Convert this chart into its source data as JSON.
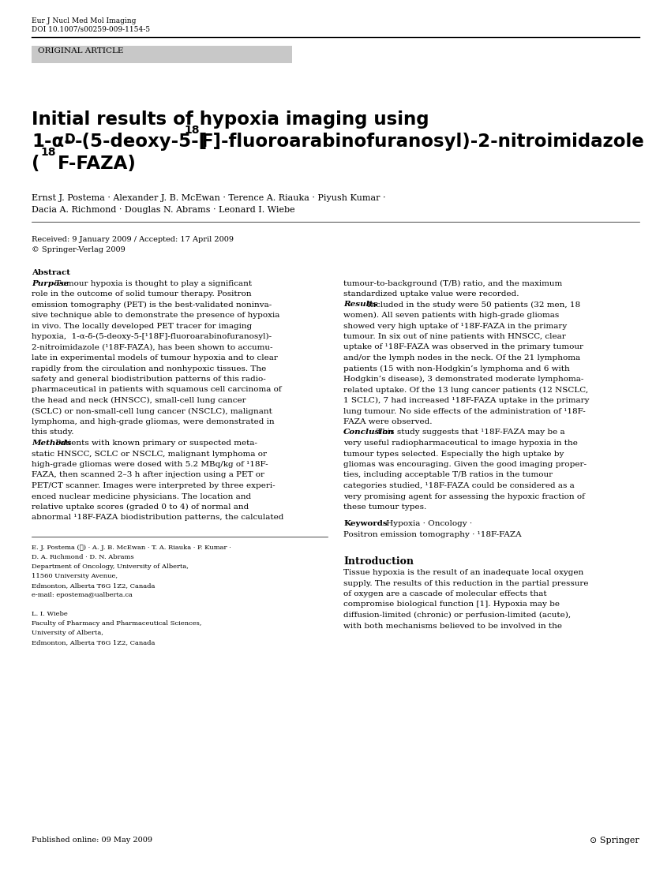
{
  "journal_name": "Eur J Nucl Med Mol Imaging",
  "doi": "DOI 10.1007/s00259-009-1154-5",
  "article_type": "ORIGINAL ARTICLE",
  "authors_line1": "Ernst J. Postema · Alexander J. B. McEwan · Terence A. Riauka · Piyush Kumar ·",
  "authors_line2": "Dacia A. Richmond · Douglas N. Abrams · Leonard I. Wiebe",
  "received": "Received: 9 January 2009 / Accepted: 17 April 2009",
  "copyright": "© Springer-Verlag 2009",
  "abstract_left_lines": [
    [
      "bold_italic",
      "Abstract"
    ],
    [
      "bold_italic_inline",
      "Purpose",
      " Tumour hypoxia is thought to play a significant"
    ],
    [
      "normal",
      "role in the outcome of solid tumour therapy. Positron"
    ],
    [
      "normal",
      "emission tomography (PET) is the best-validated noninva-"
    ],
    [
      "normal",
      "sive technique able to demonstrate the presence of hypoxia"
    ],
    [
      "normal",
      "in vivo. The locally developed PET tracer for imaging"
    ],
    [
      "normal",
      "hypoxia,  1-α-δ-(5-deoxy-5-[¹18F]-fluoroarabinofuranosyl)-"
    ],
    [
      "normal",
      "2-nitroimidazole (¹18F-FAZA), has been shown to accumu-"
    ],
    [
      "normal",
      "late in experimental models of tumour hypoxia and to clear"
    ],
    [
      "normal",
      "rapidly from the circulation and nonhypoxic tissues. The"
    ],
    [
      "normal",
      "safety and general biodistribution patterns of this radio-"
    ],
    [
      "normal",
      "pharmaceutical in patients with squamous cell carcinoma of"
    ],
    [
      "normal",
      "the head and neck (HNSCC), small-cell lung cancer"
    ],
    [
      "normal",
      "(SCLC) or non-small-cell lung cancer (NSCLC), malignant"
    ],
    [
      "normal",
      "lymphoma, and high-grade gliomas, were demonstrated in"
    ],
    [
      "normal",
      "this study."
    ],
    [
      "bold_italic_inline",
      "Methods",
      " Patients with known primary or suspected meta-"
    ],
    [
      "normal",
      "static HNSCC, SCLC or NSCLC, malignant lymphoma or"
    ],
    [
      "normal",
      "high-grade gliomas were dosed with 5.2 MBq/kg of ¹18F-"
    ],
    [
      "normal",
      "FAZA, then scanned 2–3 h after injection using a PET or"
    ],
    [
      "normal",
      "PET/CT scanner. Images were interpreted by three experi-"
    ],
    [
      "normal",
      "enced nuclear medicine physicians. The location and"
    ],
    [
      "normal",
      "relative uptake scores (graded 0 to 4) of normal and"
    ],
    [
      "normal",
      "abnormal ¹18F-FAZA biodistribution patterns, the calculated"
    ]
  ],
  "abstract_right_lines": [
    [
      "normal",
      "tumour-to-background (T/B) ratio, and the maximum"
    ],
    [
      "normal",
      "standardized uptake value were recorded."
    ],
    [
      "bold_italic_inline",
      "Results",
      " Included in the study were 50 patients (32 men, 18"
    ],
    [
      "normal",
      "women). All seven patients with high-grade gliomas"
    ],
    [
      "normal",
      "showed very high uptake of ¹18F-FAZA in the primary"
    ],
    [
      "normal",
      "tumour. In six out of nine patients with HNSCC, clear"
    ],
    [
      "normal",
      "uptake of ¹18F-FAZA was observed in the primary tumour"
    ],
    [
      "normal",
      "and/or the lymph nodes in the neck. Of the 21 lymphoma"
    ],
    [
      "normal",
      "patients (15 with non-Hodgkin’s lymphoma and 6 with"
    ],
    [
      "normal",
      "Hodgkin’s disease), 3 demonstrated moderate lymphoma-"
    ],
    [
      "normal",
      "related uptake. Of the 13 lung cancer patients (12 NSCLC,"
    ],
    [
      "normal",
      "1 SCLC), 7 had increased ¹18F-FAZA uptake in the primary"
    ],
    [
      "normal",
      "lung tumour. No side effects of the administration of ¹18F-"
    ],
    [
      "normal",
      "FAZA were observed."
    ],
    [
      "bold_italic_inline",
      "Conclusion",
      " This study suggests that ¹18F-FAZA may be a"
    ],
    [
      "normal",
      "very useful radiopharmaceutical to image hypoxia in the"
    ],
    [
      "normal",
      "tumour types selected. Especially the high uptake by"
    ],
    [
      "normal",
      "gliomas was encouraging. Given the good imaging proper-"
    ],
    [
      "normal",
      "ties, including acceptable T/B ratios in the tumour"
    ],
    [
      "normal",
      "categories studied, ¹18F-FAZA could be considered as a"
    ],
    [
      "normal",
      "very promising agent for assessing the hypoxic fraction of"
    ],
    [
      "normal",
      "these tumour types."
    ]
  ],
  "footer_lines": [
    "E. J. Postema (✉) · A. J. B. McEwan · T. A. Riauka · P. Kumar ·",
    "D. A. Richmond · D. N. Abrams",
    "Department of Oncology, University of Alberta,",
    "11560 University Avenue,",
    "Edmonton, Alberta T6G 1Z2, Canada",
    "e-mail: epostema@ualberta.ca",
    "",
    "L. I. Wiebe",
    "Faculty of Pharmacy and Pharmaceutical Sciences,",
    "University of Alberta,",
    "Edmonton, Alberta T6G 1Z2, Canada"
  ],
  "intro_lines": [
    "Tissue hypoxia is the result of an inadequate local oxygen",
    "supply. The results of this reduction in the partial pressure",
    "of oxygen are a cascade of molecular effects that",
    "compromise biological function [1]. Hypoxia may be",
    "diffusion-limited (chronic) or perfusion-limited (acute),",
    "with both mechanisms believed to be involved in the"
  ],
  "published": "Published online: 09 May 2009",
  "springer_logo": "⊙ Springer",
  "bg_color": "#ffffff",
  "text_color": "#000000",
  "gray_box_color": "#c8c8c8"
}
